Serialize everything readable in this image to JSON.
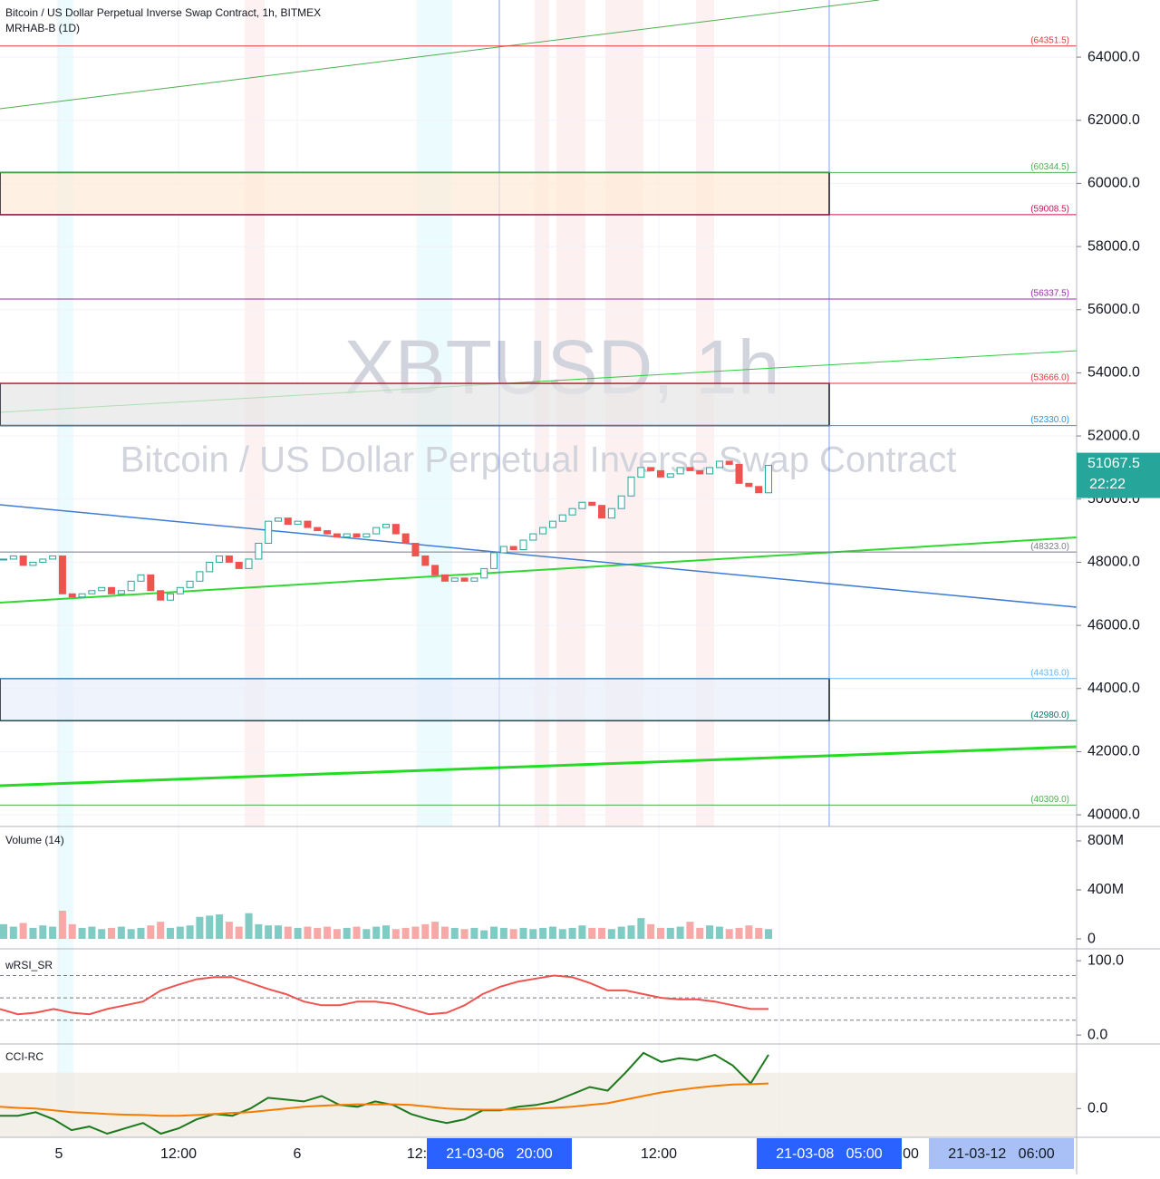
{
  "chart_data": [
    {
      "type": "candlestick",
      "title": "Bitcoin / US Dollar Perpetual Inverse Swap Contract, 1h, BITMEX",
      "subtitle": "MRHAB-B (1D)",
      "watermark": "XBTUSD, 1h",
      "watermark_subtitle": "Bitcoin / US Dollar Perpetual Inverse Swap Contract",
      "close": [
        48100,
        48200,
        47900,
        48000,
        48100,
        48200,
        47000,
        46900,
        47000,
        47100,
        47200,
        47000,
        47100,
        47400,
        47600,
        47100,
        46800,
        47000,
        47200,
        47400,
        47700,
        48000,
        48200,
        48000,
        47800,
        48100,
        48600,
        49300,
        49400,
        49200,
        49300,
        49100,
        49000,
        48900,
        48800,
        48900,
        48800,
        48900,
        49100,
        49200,
        48900,
        48600,
        48200,
        47900,
        47600,
        47400,
        47500,
        47400,
        47500,
        47800,
        48300,
        48500,
        48400,
        48700,
        48900,
        49100,
        49300,
        49500,
        49700,
        49900,
        49800,
        49400,
        49700,
        50100,
        50700,
        51000,
        50900,
        50700,
        50800,
        51000,
        50900,
        50800,
        51000,
        51200,
        51100,
        50500,
        50400,
        50200,
        51067.5
      ],
      "up_color": "#26a69a",
      "down_color": "#ef5350",
      "ylim": [
        39630,
        65810
      ],
      "yticks": [
        {
          "value": 40000,
          "label": "40000.0"
        },
        {
          "value": 42000,
          "label": "42000.0"
        },
        {
          "value": 44000,
          "label": "44000.0"
        },
        {
          "value": 46000,
          "label": "46000.0"
        },
        {
          "value": 48000,
          "label": "48000.0"
        },
        {
          "value": 50000,
          "label": "50000.0"
        },
        {
          "value": 52000,
          "label": "52000.0"
        },
        {
          "value": 54000,
          "label": "54000.0"
        },
        {
          "value": 56000,
          "label": "56000.0"
        },
        {
          "value": 58000,
          "label": "58000.0"
        },
        {
          "value": 60000,
          "label": "60000.0"
        },
        {
          "value": 62000,
          "label": "62000.0"
        },
        {
          "value": 64000,
          "label": "64000.0"
        }
      ],
      "levels": [
        {
          "value": 64351.5,
          "label": "(64351.5)",
          "color": "#e53935"
        },
        {
          "value": 60344.5,
          "label": "(60344.5)",
          "color": "#4caf50"
        },
        {
          "value": 59008.5,
          "label": "(59008.5)",
          "color": "#c2185b"
        },
        {
          "value": 56337.5,
          "label": "(56337.5)",
          "color": "#9c27b0"
        },
        {
          "value": 53666.0,
          "label": "(53666.0)",
          "color": "#e53935"
        },
        {
          "value": 52330.0,
          "label": "(52330.0)",
          "color": "#2196f3"
        },
        {
          "value": 48323.0,
          "label": "(48323.0)",
          "color": "#787b86"
        },
        {
          "value": 44316.0,
          "label": "(44316.0)",
          "color": "#64b5f6"
        },
        {
          "value": 42980.0,
          "label": "(42980.0)",
          "color": "#00796b"
        },
        {
          "value": 40309.0,
          "label": "(40309.0)",
          "color": "#4caf50"
        }
      ],
      "last_price": 51067.5,
      "countdown": "22:22",
      "grid": true
    },
    {
      "type": "bar",
      "title": "Volume (14)",
      "values": [
        120,
        100,
        130,
        90,
        110,
        100,
        230,
        120,
        90,
        100,
        80,
        90,
        100,
        80,
        90,
        110,
        140,
        90,
        100,
        110,
        180,
        190,
        200,
        140,
        100,
        210,
        120,
        110,
        110,
        100,
        90,
        100,
        90,
        100,
        80,
        90,
        100,
        80,
        100,
        110,
        80,
        90,
        100,
        120,
        140,
        100,
        90,
        80,
        90,
        70,
        100,
        90,
        80,
        90,
        80,
        90,
        100,
        80,
        90,
        110,
        90,
        90,
        80,
        100,
        110,
        170,
        120,
        90,
        90,
        100,
        140,
        90,
        110,
        100,
        80,
        90,
        110,
        90,
        80
      ],
      "up_color": "#80cbc4",
      "down_color": "#f7a9a7",
      "ylim": [
        -81,
        918
      ],
      "yticks": [
        {
          "value": 800,
          "label": "800M"
        },
        {
          "value": 400,
          "label": "400M"
        },
        0
      ]
    },
    {
      "type": "line",
      "title": "wRSI_SR",
      "values": [
        35,
        28,
        30,
        35,
        30,
        28,
        35,
        40,
        45,
        60,
        68,
        75,
        78,
        78,
        70,
        62,
        55,
        45,
        40,
        40,
        45,
        45,
        42,
        35,
        28,
        30,
        40,
        55,
        65,
        72,
        76,
        80,
        78,
        70,
        60,
        60,
        55,
        50,
        48,
        48,
        45,
        40,
        35,
        35
      ],
      "color": "#ef5350",
      "hlines": [
        80,
        50,
        20
      ],
      "ylim": [
        -12,
        116
      ],
      "yticks": [
        {
          "value": 100,
          "label": "100.0"
        },
        {
          "value": 0,
          "label": "0.0"
        }
      ]
    },
    {
      "type": "line",
      "title": "CCI-RC",
      "series": [
        {
          "color": "#1b7a1b",
          "values": [
            -20,
            -20,
            -10,
            -30,
            -60,
            -50,
            -70,
            -55,
            -40,
            -70,
            -55,
            -30,
            -15,
            -20,
            0,
            30,
            25,
            20,
            35,
            10,
            5,
            20,
            10,
            -15,
            -30,
            -40,
            -30,
            -5,
            -5,
            5,
            10,
            20,
            40,
            60,
            50,
            100,
            155,
            130,
            140,
            135,
            150,
            120,
            70,
            150
          ]
        },
        {
          "color": "#f57c00",
          "values": [
            5,
            2,
            0,
            -5,
            -10,
            -12,
            -15,
            -17,
            -18,
            -20,
            -20,
            -18,
            -15,
            -12,
            -10,
            -5,
            0,
            5,
            8,
            10,
            12,
            12,
            12,
            10,
            5,
            0,
            -2,
            -3,
            -3,
            -2,
            0,
            2,
            5,
            10,
            15,
            25,
            35,
            45,
            52,
            58,
            63,
            67,
            68,
            70
          ]
        }
      ],
      "band": [
        -100,
        100
      ],
      "ylim": [
        -80,
        180
      ],
      "yticks": [
        {
          "value": 0,
          "label": "0.0"
        }
      ]
    }
  ],
  "time_axis": {
    "labels": [
      "5",
      "12:00",
      "6",
      "12:",
      "12:00",
      "00"
    ],
    "markers": [
      "21-03-06   20:00",
      "21-03-08   05:00",
      "21-03-12   06:00"
    ]
  }
}
